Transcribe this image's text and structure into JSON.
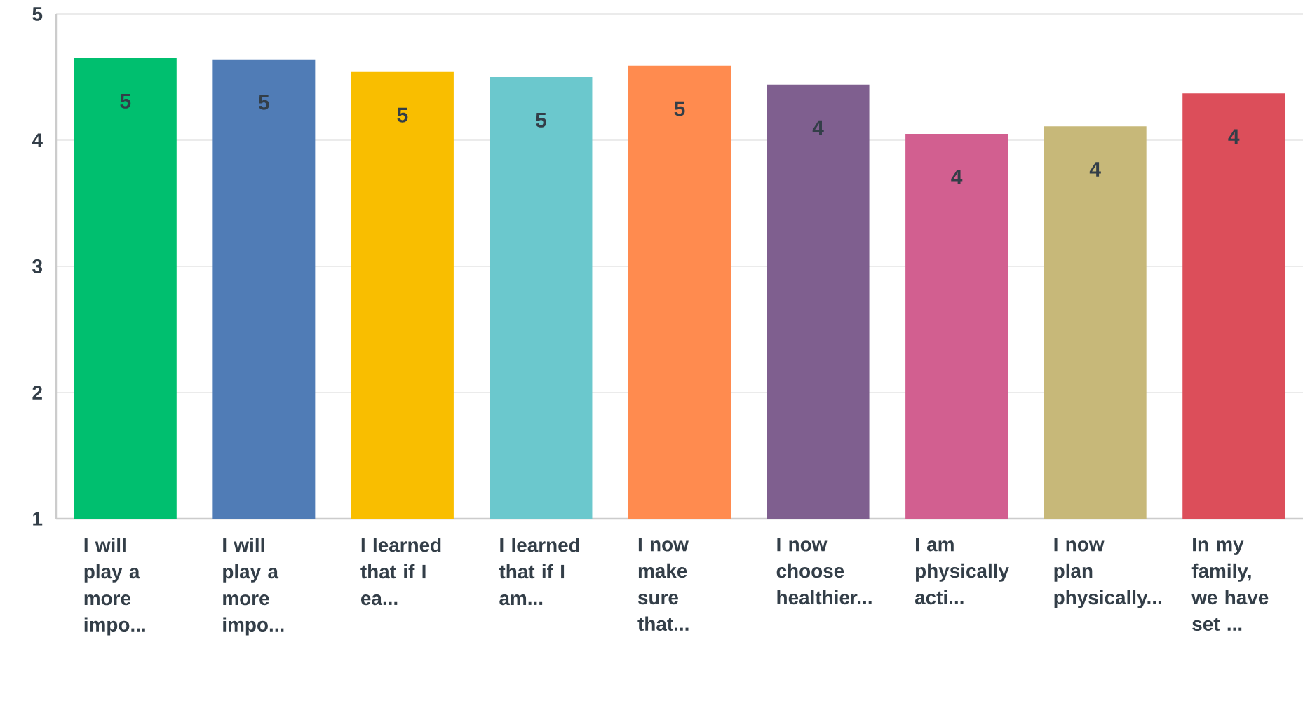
{
  "chart_data": {
    "type": "bar",
    "categories": [
      "I will play a more impo...",
      "I will play a more impo...",
      "I learned that if I ea...",
      "I learned that if I am...",
      "I now make sure that...",
      "I now choose healthier...",
      "I am physically acti...",
      "I now plan physically...",
      "In my family, we have set ..."
    ],
    "values": [
      4.65,
      4.64,
      4.54,
      4.5,
      4.59,
      4.44,
      4.05,
      4.11,
      4.37
    ],
    "colors": [
      "#00bf6f",
      "#507cb6",
      "#f9be00",
      "#6bc8cd",
      "#ff8b4f",
      "#7f5f8f",
      "#d25f90",
      "#c7b879",
      "#dc4e5a"
    ],
    "value_labels": [
      "5",
      "5",
      "5",
      "5",
      "5",
      "4",
      "4",
      "4",
      "4"
    ],
    "ylim": [
      1,
      5
    ],
    "yticks": [
      1,
      2,
      3,
      4,
      5
    ],
    "grid": "y"
  }
}
